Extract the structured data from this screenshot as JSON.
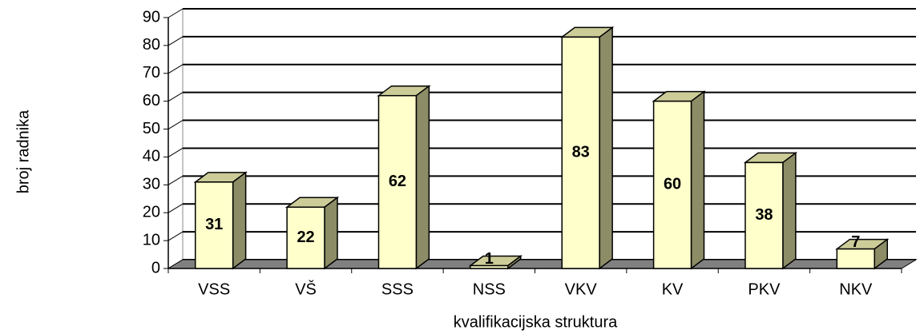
{
  "chart_data": {
    "type": "bar3d",
    "x_label": "kvalifikacijska struktura",
    "y_label": "broj radnika",
    "categories": [
      "VSS",
      "VŠ",
      "SSS",
      "NSS",
      "VKV",
      "KV",
      "PKV",
      "NKV"
    ],
    "values": [
      31,
      22,
      62,
      1,
      83,
      60,
      38,
      7
    ],
    "color": "#ffffcc",
    "ylim": [
      0,
      90
    ],
    "yticks": [
      0,
      10,
      20,
      30,
      40,
      50,
      60,
      70,
      80,
      90
    ],
    "grid": true
  }
}
